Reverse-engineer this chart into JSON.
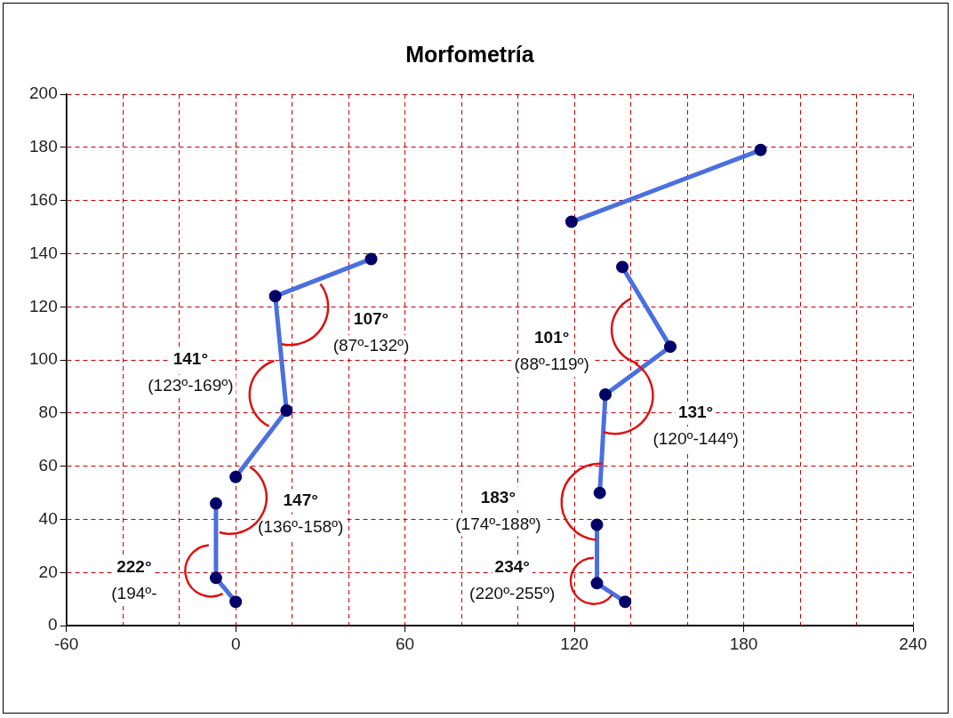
{
  "chart_data": {
    "type": "line",
    "title": "Morfometría",
    "series": [
      {
        "color": "#4a6fe0",
        "x": [
          0,
          -7,
          -7
        ],
        "values": [
          9,
          18,
          46
        ]
      },
      {
        "color": "#4a6fe0",
        "x": [
          0,
          18,
          14,
          48
        ],
        "values": [
          56,
          81,
          124,
          138
        ]
      },
      {
        "color": "#4a6fe0",
        "x": [
          138,
          128,
          128
        ],
        "values": [
          9,
          16,
          38
        ]
      },
      {
        "color": "#4a6fe0",
        "x": [
          129,
          131,
          154,
          137
        ],
        "values": [
          50,
          87,
          105,
          135
        ]
      },
      {
        "color": "#4a6fe0",
        "x": [
          119,
          186
        ],
        "values": [
          152,
          179
        ]
      }
    ],
    "xlim": [
      -60,
      240
    ],
    "xticks": [
      -60,
      {
        "value": -40,
        "label": null
      },
      {
        "value": -20,
        "label": null
      },
      0,
      {
        "value": 20,
        "label": null
      },
      {
        "value": 40,
        "label": null
      },
      60,
      {
        "value": 80,
        "label": null
      },
      {
        "value": 100,
        "label": null
      },
      120,
      {
        "value": 140,
        "label": null
      },
      {
        "value": 160,
        "label": null
      },
      180,
      {
        "value": 200,
        "label": null
      },
      {
        "value": 220,
        "label": null
      },
      240
    ],
    "ylim": [
      0,
      200
    ],
    "yticks": [
      0,
      20,
      40,
      60,
      80,
      100,
      120,
      140,
      160,
      180,
      200
    ],
    "grid": true,
    "legend": false,
    "marker": "circle",
    "line_style": "solid",
    "annotations": [
      "107°\n(87º-132º)",
      "141°\n(123º-169º)",
      "147°\n(136º-158º)",
      "222°\n(194º-",
      "101°\n(88º-119º)",
      "131°\n(120º-144º)",
      "183°\n(174º-188º)",
      "234°\n(220º-255º)"
    ]
  }
}
